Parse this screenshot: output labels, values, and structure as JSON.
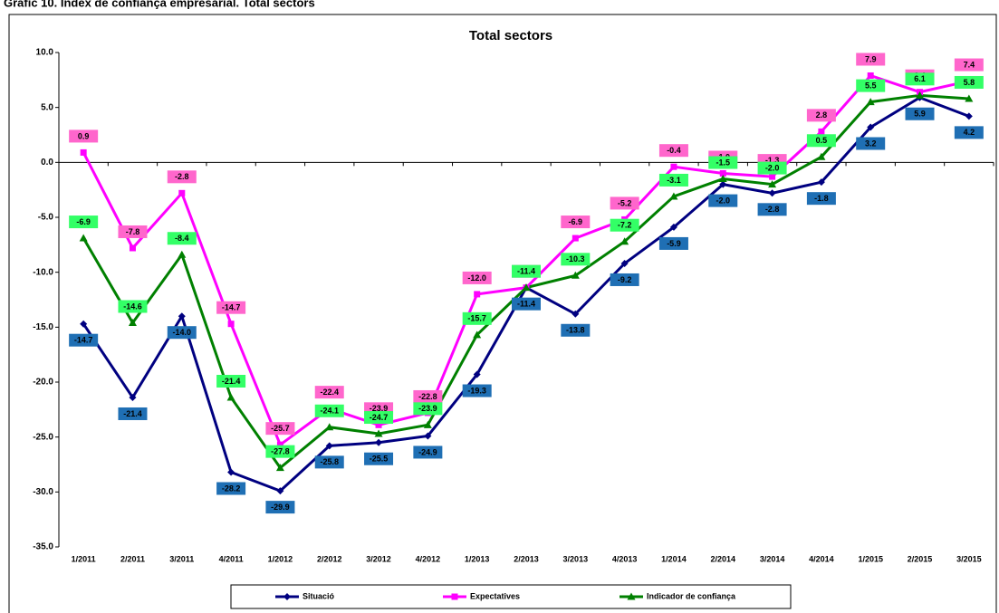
{
  "header": {
    "title": "Gràfic 10. Índex de confiança empresarial. Total sectors"
  },
  "chart_data": {
    "type": "line",
    "title": "Total sectors",
    "categories": [
      "1/2011",
      "2/2011",
      "3/2011",
      "4/2011",
      "1/2012",
      "2/2012",
      "3/2012",
      "4/2012",
      "1/2013",
      "2/2013",
      "3/2013",
      "4/2013",
      "1/2014",
      "2/2014",
      "3/2014",
      "4/2014",
      "1/2015",
      "2/2015",
      "3/2015"
    ],
    "ylim": [
      -35,
      10
    ],
    "yticks": [
      {
        "value": -35,
        "label": "-35.0"
      },
      {
        "value": -30,
        "label": "-30.0"
      },
      {
        "value": -25,
        "label": "-25.0"
      },
      {
        "value": -20,
        "label": "-20.0"
      },
      {
        "value": -15,
        "label": "-15.0"
      },
      {
        "value": -10,
        "label": "-10.0"
      },
      {
        "value": -5,
        "label": "-5.0"
      },
      {
        "value": 0,
        "label": "0.0"
      },
      {
        "value": 5,
        "label": "5.0"
      },
      {
        "value": 10,
        "label": "10.0"
      }
    ],
    "grid": false,
    "legend": "bottom",
    "series": [
      {
        "name": "Situació",
        "color": "#000080",
        "marker": "diamond",
        "label_color": "#1f6fb4",
        "label_text_color": "#ffffff",
        "label_side": "below",
        "values": [
          -14.7,
          -21.4,
          -14.0,
          -28.2,
          -29.9,
          -25.8,
          -25.5,
          -24.9,
          -19.3,
          -11.4,
          -13.8,
          -9.2,
          -5.9,
          -2.0,
          -2.8,
          -1.8,
          3.2,
          5.9,
          4.2
        ],
        "value_labels": [
          "-14.7",
          "-21.4",
          "-14.0",
          "-28.2",
          "-29.9",
          "-25.8",
          "-25.5",
          "-24.9",
          "-19.3",
          "-11.4",
          "-13.8",
          "-9.2",
          "-5.9",
          "-2.0",
          "-2.8",
          "-1.8",
          "3.2",
          "5.9",
          "4.2"
        ]
      },
      {
        "name": "Expectatives",
        "color": "#ff00ff",
        "marker": "square",
        "label_color": "#ff66cc",
        "label_text_color": "#000000",
        "label_side": "above",
        "values": [
          0.9,
          -7.8,
          -2.8,
          -14.7,
          -25.7,
          -22.4,
          -23.9,
          -22.8,
          -12.0,
          -11.4,
          -6.9,
          -5.2,
          -0.4,
          -1.0,
          -1.3,
          2.8,
          7.9,
          6.4,
          7.4
        ],
        "value_labels": [
          "0.9",
          "-7.8",
          "-2.8",
          "-14.7",
          "-25.7",
          "-22.4",
          "-23.9",
          "-22.8",
          "-12.0",
          "-11.4",
          "-6.9",
          "-5.2",
          "-0.4",
          "-1.0",
          "-1.3",
          "2.8",
          "7.9",
          "6.4",
          "7.4"
        ]
      },
      {
        "name": "Indicador de confiança",
        "color": "#008000",
        "marker": "triangle",
        "label_color": "#33ff66",
        "label_text_color": "#000000",
        "label_side": "above",
        "values": [
          -6.9,
          -14.6,
          -8.4,
          -21.4,
          -27.8,
          -24.1,
          -24.7,
          -23.9,
          -15.7,
          -11.4,
          -10.3,
          -7.2,
          -3.1,
          -1.5,
          -2.0,
          0.5,
          5.5,
          6.1,
          5.8
        ],
        "value_labels": [
          "-6.9",
          "-14.6",
          "-8.4",
          "-21.4",
          "-27.8",
          "-24.1",
          "-24.7",
          "-23.9",
          "-15.7",
          "-11.4",
          "-10.3",
          "-7.2",
          "-3.1",
          "-1.5",
          "-2.0",
          "0.5",
          "5.5",
          "6.1",
          "5.8"
        ]
      }
    ]
  }
}
